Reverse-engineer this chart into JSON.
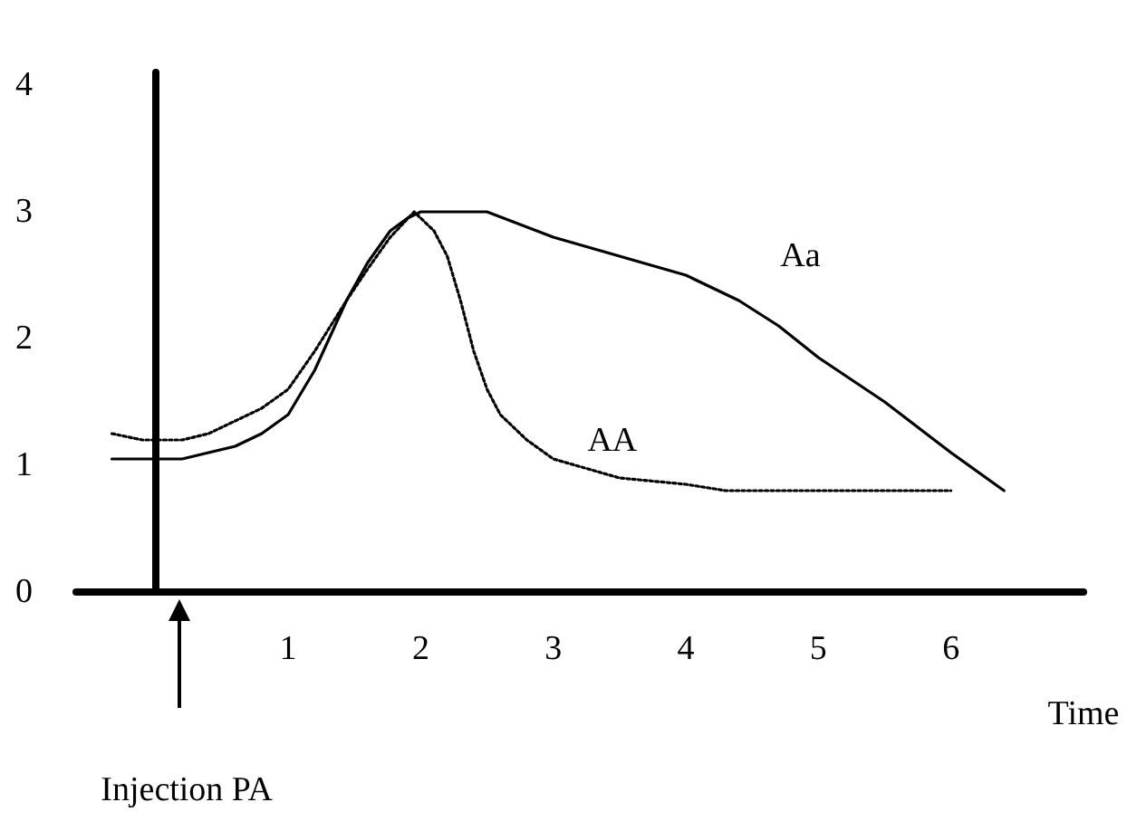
{
  "chart_data": {
    "type": "line",
    "xlabel": "Time",
    "xlim": [
      -0.6,
      7
    ],
    "xticks": [
      1,
      2,
      3,
      4,
      5,
      6
    ],
    "ylim": [
      0,
      4.1
    ],
    "yticks": [
      0,
      1,
      2,
      3,
      4
    ],
    "grid": false,
    "marker": "none",
    "series": [
      {
        "name": "Aa",
        "color": "#000000",
        "line_style": "solid",
        "x": [
          -0.33,
          0,
          0.2,
          0.4,
          0.6,
          0.8,
          1,
          1.2,
          1.44,
          1.6,
          1.77,
          1.9,
          2,
          2.5,
          3,
          3.5,
          4,
          4.4,
          4.7,
          5,
          5.5,
          6,
          6.4
        ],
        "values": [
          1.05,
          1.05,
          1.05,
          1.1,
          1.15,
          1.25,
          1.4,
          1.75,
          2.3,
          2.6,
          2.85,
          2.95,
          3.0,
          3.0,
          2.8,
          2.65,
          2.5,
          2.3,
          2.1,
          1.85,
          1.5,
          1.1,
          0.8
        ]
      },
      {
        "name": "AA",
        "color": "#000000",
        "line_style": "dotted",
        "x": [
          -0.33,
          -0.1,
          0.2,
          0.4,
          0.6,
          0.8,
          1,
          1.2,
          1.44,
          1.6,
          1.77,
          1.95,
          2.1,
          2.2,
          2.3,
          2.4,
          2.5,
          2.6,
          2.8,
          3,
          3.5,
          4,
          4.3,
          5,
          6
        ],
        "values": [
          1.25,
          1.2,
          1.2,
          1.25,
          1.35,
          1.45,
          1.6,
          1.9,
          2.3,
          2.55,
          2.8,
          3.0,
          2.85,
          2.65,
          2.3,
          1.9,
          1.6,
          1.4,
          1.2,
          1.05,
          0.9,
          0.85,
          0.8,
          0.8,
          0.8
        ]
      }
    ],
    "annotations": [
      "Injection PA"
    ]
  }
}
